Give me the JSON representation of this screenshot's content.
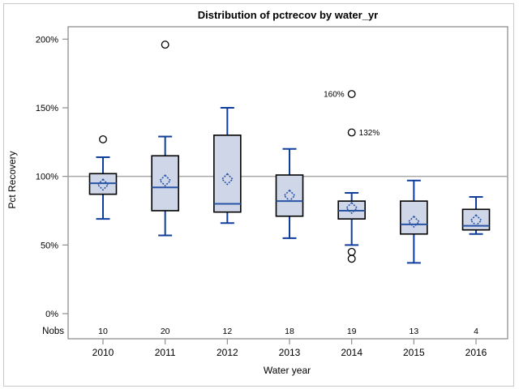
{
  "chart_data": {
    "type": "boxplot",
    "title": "Distribution of pctrecov by water_yr",
    "xlabel": "Water year",
    "ylabel": "Pct Recovery",
    "nobs_label": "Nobs",
    "unit": "%",
    "ylim": [
      0,
      210
    ],
    "grid": false,
    "reference_line": 100,
    "yticks": [
      {
        "value": 0,
        "label": "0%"
      },
      {
        "value": 50,
        "label": "50%"
      },
      {
        "value": 100,
        "label": "100%"
      },
      {
        "value": 150,
        "label": "150%"
      },
      {
        "value": 200,
        "label": "200%"
      }
    ],
    "categories": [
      "2010",
      "2011",
      "2012",
      "2013",
      "2014",
      "2015",
      "2016"
    ],
    "series": [
      {
        "category": "2010",
        "nobs": "10",
        "whisker_low": 69,
        "q1": 87,
        "median": 95,
        "q3": 102,
        "whisker_high": 114,
        "mean": 94,
        "outliers": [
          {
            "value": 127
          }
        ]
      },
      {
        "category": "2011",
        "nobs": "20",
        "whisker_low": 57,
        "q1": 75,
        "median": 92,
        "q3": 115,
        "whisker_high": 129,
        "mean": 97,
        "outliers": [
          {
            "value": 196
          }
        ]
      },
      {
        "category": "2012",
        "nobs": "12",
        "whisker_low": 66,
        "q1": 74,
        "median": 80,
        "q3": 130,
        "whisker_high": 150,
        "mean": 98,
        "outliers": []
      },
      {
        "category": "2013",
        "nobs": "18",
        "whisker_low": 55,
        "q1": 71,
        "median": 82,
        "q3": 101,
        "whisker_high": 120,
        "mean": 86,
        "outliers": []
      },
      {
        "category": "2014",
        "nobs": "19",
        "whisker_low": 50,
        "q1": 69,
        "median": 75,
        "q3": 82,
        "whisker_high": 88,
        "mean": 77,
        "outliers": [
          {
            "value": 160,
            "label": "160%",
            "label_side": "left"
          },
          {
            "value": 132,
            "label": "132%",
            "label_side": "right"
          },
          {
            "value": 45
          },
          {
            "value": 40
          }
        ]
      },
      {
        "category": "2015",
        "nobs": "13",
        "whisker_low": 37,
        "q1": 58,
        "median": 65,
        "q3": 82,
        "whisker_high": 97,
        "mean": 67,
        "outliers": []
      },
      {
        "category": "2016",
        "nobs": "4",
        "whisker_low": 58,
        "q1": 61,
        "median": 64,
        "q3": 76,
        "whisker_high": 85,
        "mean": 68,
        "outliers": []
      }
    ]
  },
  "colors": {
    "background": "#ffffff",
    "page_border": "#c9c9c9",
    "frame": "#8f8f8f",
    "reference_line": "#a8a8a8",
    "box_fill": "#ced6e8",
    "box_border": "#000000",
    "whisker": "#0f3d9b",
    "median": "#2a54a4",
    "mean": "#2a54a4",
    "outlier": "#000000",
    "text": "#000000"
  }
}
